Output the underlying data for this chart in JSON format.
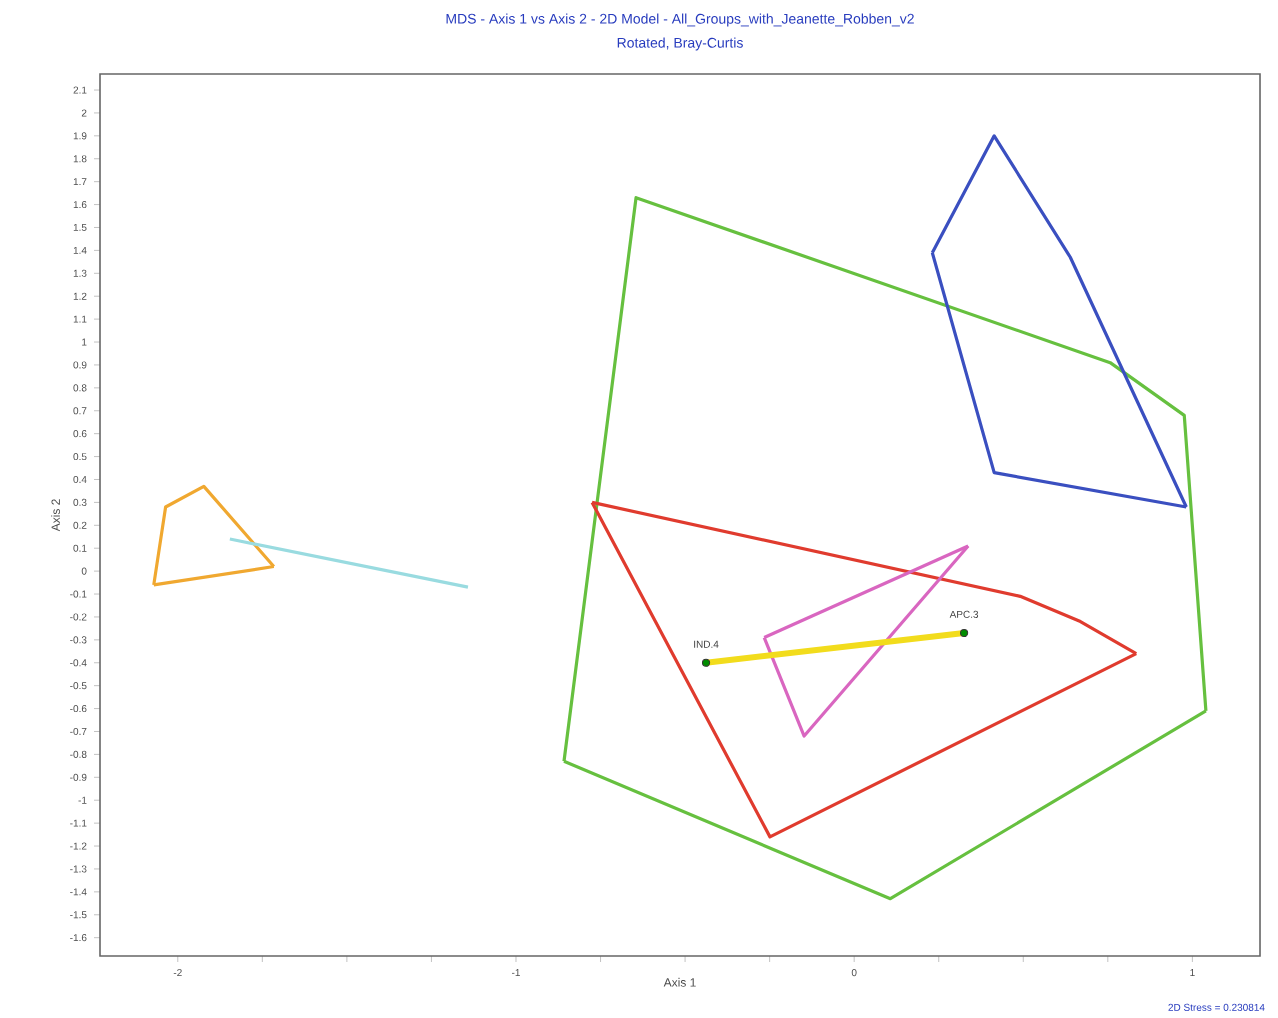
{
  "chart_data": {
    "type": "line",
    "title": "MDS - Axis 1 vs Axis 2 - 2D Model - All_Groups_with_Jeanette_Robben_v2",
    "subtitle": "Rotated,  Bray-Curtis",
    "xlabel": "Axis 1",
    "ylabel": "Axis 2",
    "xlim": [
      -2.23,
      1.2
    ],
    "ylim": [
      -1.68,
      2.17
    ],
    "xticks": [
      -2,
      {
        "value": -1.75,
        "label": null
      },
      {
        "value": -1.5,
        "label": null
      },
      {
        "value": -1.25,
        "label": null
      },
      -1,
      {
        "value": -0.75,
        "label": null
      },
      {
        "value": -0.5,
        "label": null
      },
      {
        "value": -0.25,
        "label": null
      },
      0,
      {
        "value": 0.25,
        "label": null
      },
      {
        "value": 0.5,
        "label": null
      },
      {
        "value": 0.75,
        "label": null
      },
      1
    ],
    "yticks": [
      -1.6,
      -1.5,
      -1.4,
      -1.3,
      -1.2,
      -1.1,
      -1,
      -0.9,
      -0.8,
      -0.7,
      -0.6,
      -0.5,
      -0.4,
      -0.3,
      -0.2,
      -0.1,
      0,
      0.1,
      0.2,
      0.3,
      0.4,
      0.5,
      0.6,
      0.7,
      0.8,
      0.9,
      1,
      1.1,
      1.2,
      1.3,
      1.4,
      1.5,
      1.6,
      1.7,
      1.8,
      1.9,
      2,
      2.1
    ],
    "grid": false,
    "marker": "none",
    "line_style": "solid",
    "series": [
      {
        "color": "#66c03f",
        "x": [
          -0.858,
          -0.645,
          0.757,
          0.976,
          1.04
        ],
        "values": [
          -0.83,
          1.63,
          0.91,
          0.68,
          -0.61
        ]
      },
      {
        "color": "#66c03f",
        "x": [
          -0.858,
          0.107,
          1.04
        ],
        "values": [
          -0.83,
          -1.43,
          -0.61
        ]
      },
      {
        "color": "#3a4fc0",
        "x": [
          0.231,
          0.414,
          0.639,
          0.982
        ],
        "values": [
          1.39,
          1.9,
          1.37,
          0.28
        ]
      },
      {
        "color": "#3a4fc0",
        "x": [
          0.231,
          0.414,
          0.982
        ],
        "values": [
          1.39,
          0.43,
          0.28
        ]
      },
      {
        "color": "#e03b2e",
        "x": [
          -0.775,
          0.491,
          0.669,
          0.834
        ],
        "values": [
          0.3,
          -0.11,
          -0.22,
          -0.36
        ]
      },
      {
        "color": "#e03b2e",
        "x": [
          -0.775,
          -0.249,
          0.834
        ],
        "values": [
          0.3,
          -1.16,
          -0.36
        ]
      },
      {
        "color": "#d966c0",
        "x": [
          -0.266,
          0.337
        ],
        "values": [
          -0.29,
          0.11
        ]
      },
      {
        "color": "#d966c0",
        "x": [
          -0.266,
          -0.148,
          0.337
        ],
        "values": [
          -0.29,
          -0.72,
          0.11
        ]
      },
      {
        "color": "#f0a830",
        "x": [
          -2.071,
          -2.036,
          -1.923,
          -1.716
        ],
        "values": [
          -0.06,
          0.28,
          0.37,
          0.02
        ]
      },
      {
        "color": "#f0a830",
        "x": [
          -2.071,
          -1.716
        ],
        "values": [
          -0.06,
          0.02
        ]
      },
      {
        "color": "#99dbe0",
        "x": [
          -1.846,
          -1.142
        ],
        "values": [
          0.14,
          -0.07
        ]
      },
      {
        "color": "#f2dc1c",
        "marker": "circle",
        "x": [
          -0.438,
          0.325
        ],
        "values": [
          -0.4,
          -0.27
        ]
      }
    ],
    "annotations": [
      {
        "text": "IND.4",
        "x": -0.438,
        "y": -0.4
      },
      {
        "text": "APC.3",
        "x": 0.325,
        "y": -0.27
      },
      "2D Stress = 0.230814"
    ]
  }
}
